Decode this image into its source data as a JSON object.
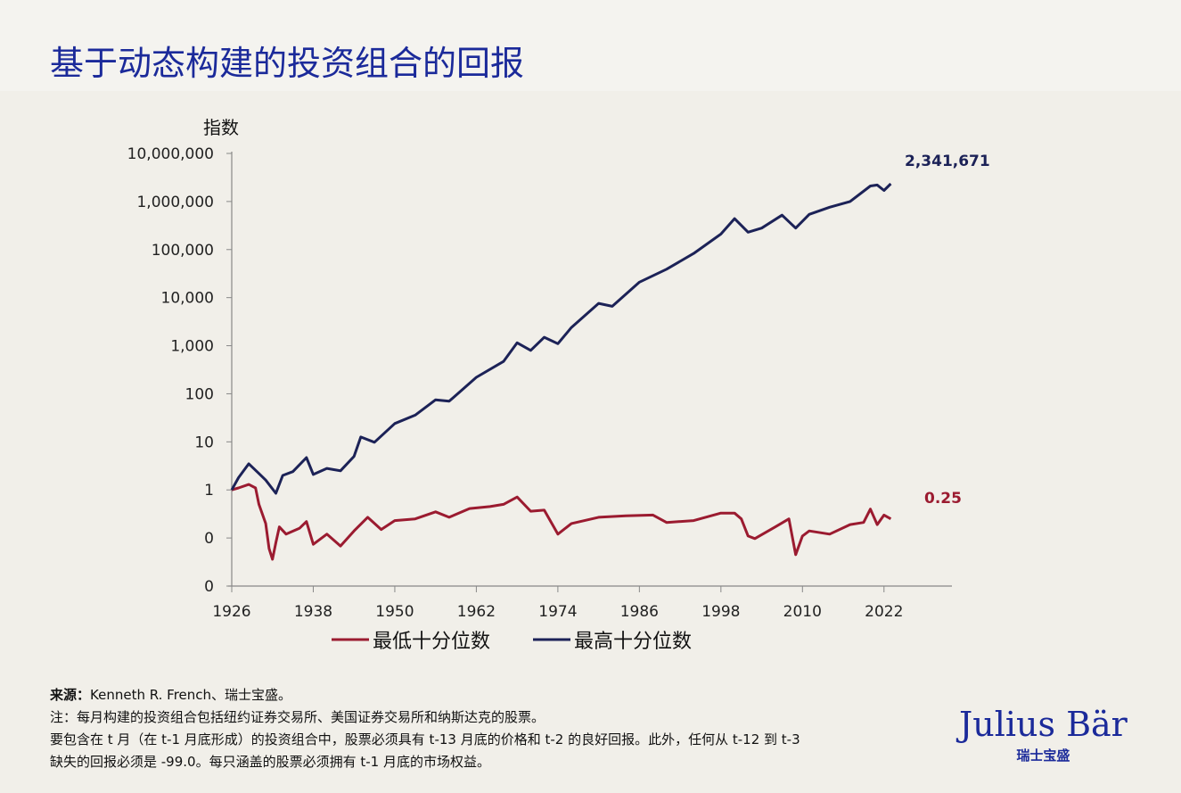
{
  "title": "基于动态构建的投资组合的回报",
  "chart_data": {
    "type": "line",
    "ylabel": "指数",
    "xlabel": "",
    "y_scale": "log",
    "ylim": [
      0.01,
      10000000
    ],
    "xlim": [
      1926,
      2032
    ],
    "grid": false,
    "legend_placement": "bottom",
    "x_ticks": [
      1926,
      1938,
      1950,
      1962,
      1974,
      1986,
      1998,
      2010,
      2022
    ],
    "y_ticks": [
      {
        "value": 10000000,
        "label": "10,000,000"
      },
      {
        "value": 1000000,
        "label": "1,000,000"
      },
      {
        "value": 100000,
        "label": "100,000"
      },
      {
        "value": 10000,
        "label": "10,000"
      },
      {
        "value": 1000,
        "label": "1,000"
      },
      {
        "value": 100,
        "label": "100"
      },
      {
        "value": 10,
        "label": "10"
      },
      {
        "value": 1,
        "label": "1"
      },
      {
        "value": 0.1,
        "label": "0"
      },
      {
        "value": 0.01,
        "label": "0"
      }
    ],
    "series": [
      {
        "name": "最低十分位数",
        "color": "#9b1b30",
        "end_label": "0.25",
        "x": [
          1926,
          1927,
          1928.5,
          1929.5,
          1930,
          1931,
          1931.5,
          1932,
          1932.5,
          1933,
          1934,
          1936,
          1937,
          1938,
          1940,
          1942,
          1944,
          1946,
          1948,
          1950,
          1953,
          1956,
          1958,
          1961,
          1964,
          1966,
          1968,
          1970,
          1972,
          1974,
          1976,
          1980,
          1984,
          1988,
          1990,
          1994,
          1998,
          2000,
          2001,
          2002,
          2003,
          2006,
          2008,
          2009,
          2010,
          2011,
          2014,
          2017,
          2019,
          2020,
          2021,
          2022,
          2023
        ],
        "y": [
          1,
          1.1,
          1.3,
          1.1,
          0.5,
          0.2,
          0.06,
          0.036,
          0.08,
          0.17,
          0.12,
          0.16,
          0.22,
          0.074,
          0.12,
          0.068,
          0.14,
          0.27,
          0.15,
          0.23,
          0.25,
          0.35,
          0.27,
          0.41,
          0.45,
          0.5,
          0.71,
          0.36,
          0.38,
          0.12,
          0.2,
          0.27,
          0.29,
          0.3,
          0.21,
          0.23,
          0.33,
          0.33,
          0.25,
          0.11,
          0.097,
          0.17,
          0.25,
          0.045,
          0.11,
          0.14,
          0.12,
          0.19,
          0.21,
          0.4,
          0.19,
          0.3,
          0.25
        ]
      },
      {
        "name": "最高十分位数",
        "color": "#1c2257",
        "end_label": "2,341,671",
        "x": [
          1926,
          1927,
          1928.5,
          1930,
          1931,
          1932.5,
          1933.5,
          1935,
          1937,
          1938,
          1940,
          1942,
          1944,
          1945,
          1947,
          1950,
          1953,
          1956,
          1958,
          1962,
          1966,
          1968,
          1970,
          1972,
          1974,
          1976,
          1980,
          1982,
          1986,
          1990,
          1994,
          1998,
          2000,
          2002,
          2004,
          2007,
          2009,
          2011,
          2014,
          2017,
          2020,
          2021,
          2022,
          2023
        ],
        "y": [
          1,
          1.8,
          3.5,
          2.2,
          1.6,
          0.85,
          2.0,
          2.4,
          4.7,
          2.1,
          2.8,
          2.5,
          5,
          12.6,
          9.8,
          24,
          36,
          75,
          70,
          220,
          470,
          1150,
          800,
          1500,
          1100,
          2400,
          7600,
          6600,
          21000,
          39000,
          83000,
          210000,
          440000,
          230000,
          280000,
          520000,
          280000,
          540000,
          760000,
          1000000,
          2100000,
          2200000,
          1700000,
          2341671
        ]
      }
    ]
  },
  "footnote": {
    "source_label": "来源：",
    "source_text": "Kenneth R. French、瑞士宝盛。",
    "note_line1": "注：每月构建的投资组合包括纽约证券交易所、美国证券交易所和纳斯达克的股票。",
    "note_line2": "要包含在 t 月（在 t-1 月底形成）的投资组合中，股票必须具有 t-13 月底的价格和 t-2 的良好回报。此外，任何从 t-12 到 t-3",
    "note_line3": "缺失的回报必须是 -99.0。每只涵盖的股票必须拥有 t-1 月底的市场权益。"
  },
  "logo": {
    "name": "Julius Bär",
    "sub": "瑞士宝盛"
  }
}
